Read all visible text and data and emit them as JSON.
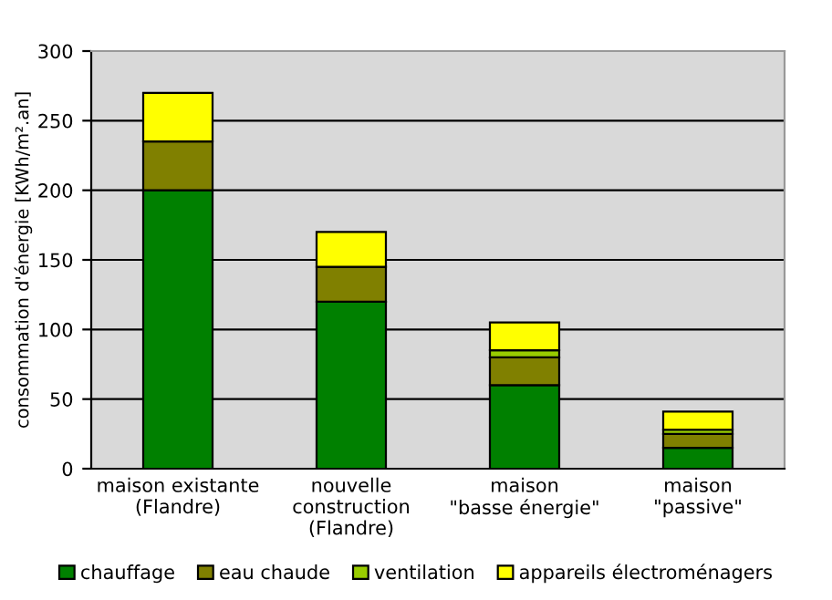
{
  "chart_data": {
    "type": "bar",
    "stacked": true,
    "ylabel": "consommation d'énergie [KWh/m².an]",
    "categories": [
      "maison existante\n(Flandre)",
      "nouvelle\nconstruction\n(Flandre)",
      "maison\n\"basse énergie\"",
      "maison\n\"passive\""
    ],
    "series": [
      {
        "name": "chauffage",
        "color": "#008000",
        "values": [
          200,
          120,
          60,
          15
        ]
      },
      {
        "name": "eau chaude",
        "color": "#808000",
        "values": [
          35,
          25,
          20,
          10
        ]
      },
      {
        "name": "ventilation",
        "color": "#99cc00",
        "values": [
          null,
          null,
          5,
          3
        ]
      },
      {
        "name": "appareils électroménagers",
        "color": "#ffff00",
        "values": [
          35,
          25,
          20,
          13
        ]
      }
    ],
    "ylim": [
      0,
      300
    ],
    "yticks": [
      0,
      50,
      100,
      150,
      200,
      250,
      300
    ],
    "grid": "y",
    "legend": "bottom"
  }
}
